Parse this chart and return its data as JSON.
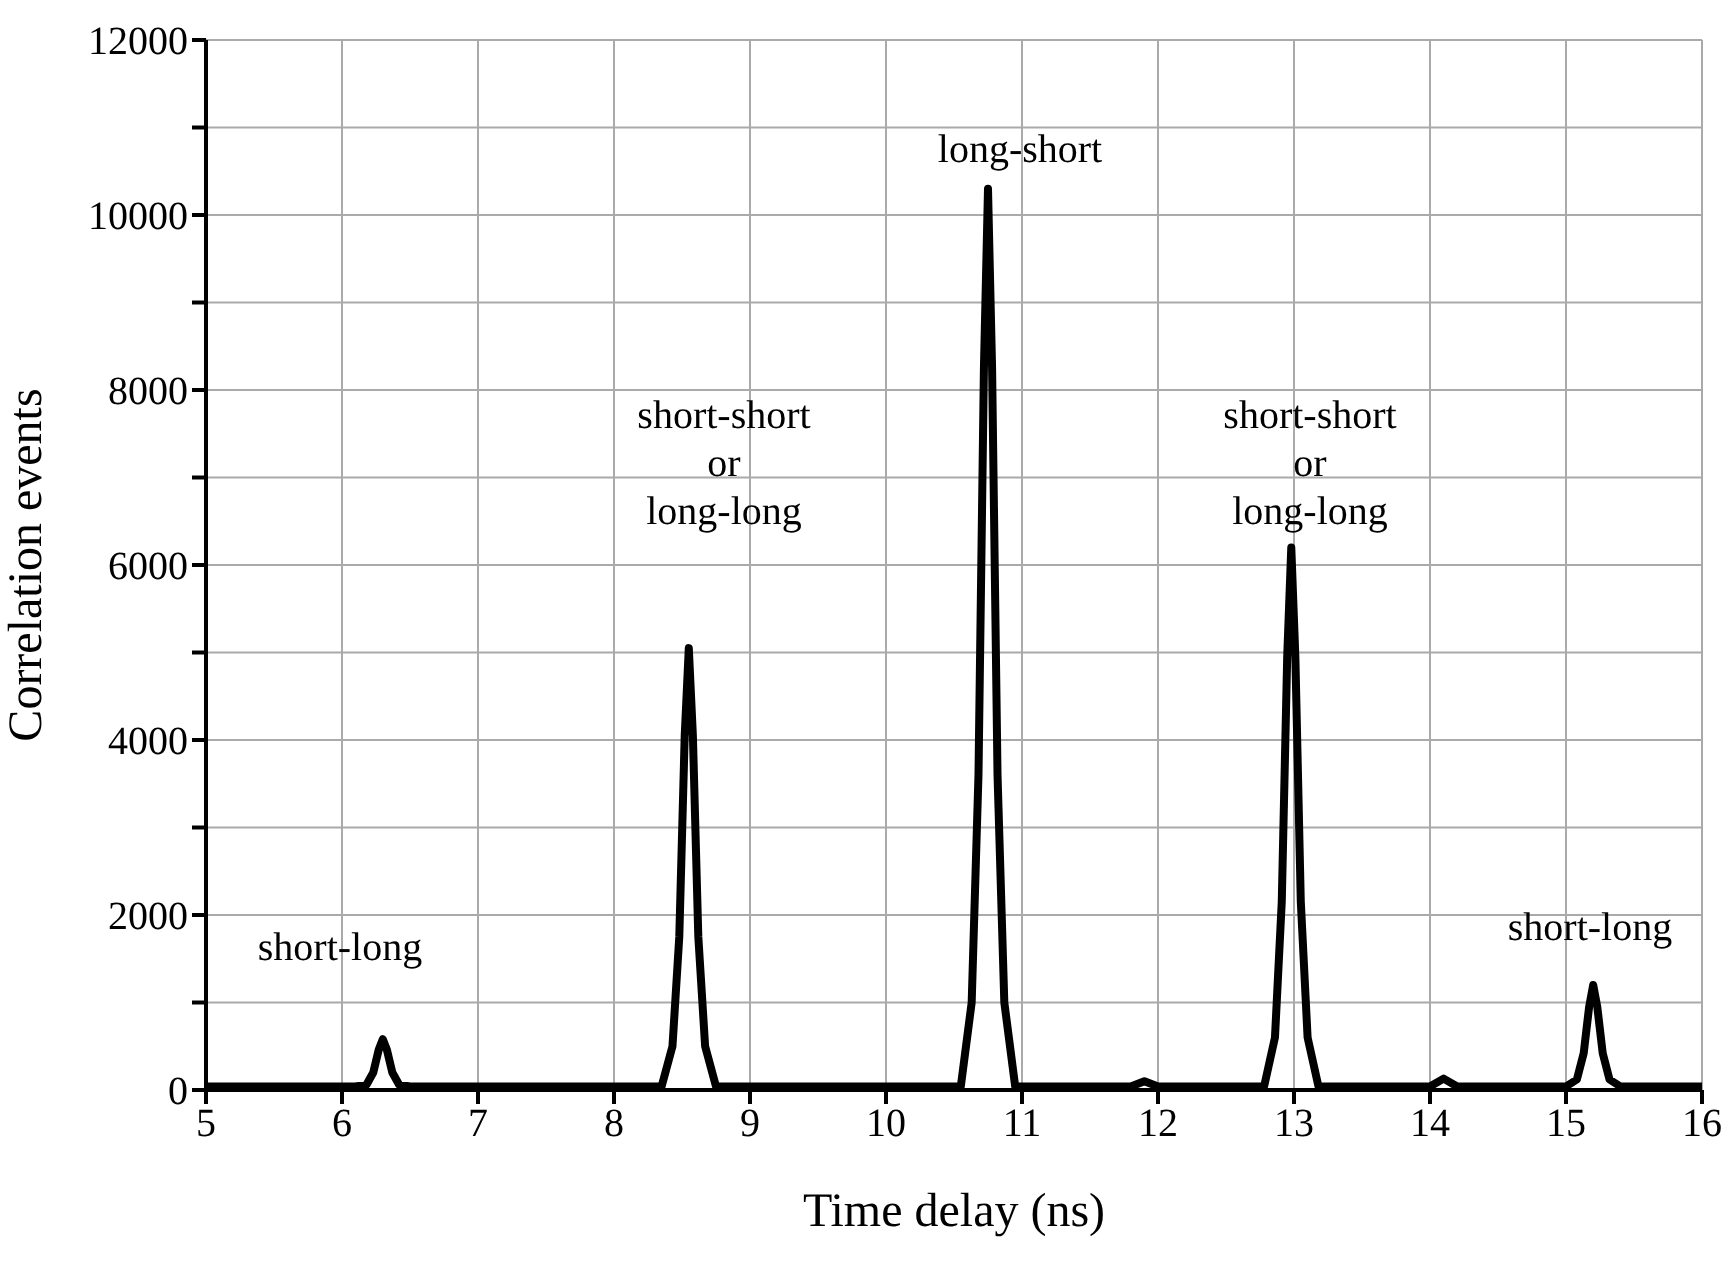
{
  "chart_data": {
    "type": "line",
    "xlabel": "Time delay (ns)",
    "ylabel": "Correlation events",
    "x": [
      5,
      6.1,
      6.18,
      6.23,
      6.27,
      6.3,
      6.33,
      6.37,
      6.42,
      6.5,
      8.35,
      8.43,
      8.48,
      8.52,
      8.55,
      8.58,
      8.62,
      8.67,
      8.75,
      10.55,
      10.63,
      10.68,
      10.72,
      10.75,
      10.78,
      10.82,
      10.87,
      10.95,
      11.8,
      11.9,
      12.0,
      12.78,
      12.86,
      12.91,
      12.95,
      12.98,
      13.01,
      13.05,
      13.1,
      13.18,
      14.0,
      14.1,
      14.2,
      15.0,
      15.08,
      15.13,
      15.17,
      15.2,
      15.23,
      15.27,
      15.32,
      15.4,
      16
    ],
    "series": [
      {
        "color": "#000000",
        "values": [
          40,
          40,
          60,
          200,
          460,
          580,
          460,
          200,
          60,
          40,
          40,
          500,
          1750,
          4050,
          5050,
          4050,
          1750,
          500,
          40,
          40,
          1000,
          3600,
          8250,
          10300,
          8250,
          3600,
          1000,
          40,
          40,
          100,
          40,
          40,
          600,
          2150,
          4950,
          6200,
          4950,
          2150,
          600,
          40,
          40,
          130,
          40,
          40,
          120,
          420,
          950,
          1200,
          950,
          420,
          120,
          40,
          40
        ]
      }
    ],
    "xlim": [
      5,
      16
    ],
    "xticks": [
      5,
      6,
      7,
      8,
      9,
      10,
      11,
      12,
      13,
      14,
      15,
      16
    ],
    "ylim": [
      0,
      12000
    ],
    "yticks": [
      0,
      {
        "value": 1000,
        "label": null
      },
      2000,
      {
        "value": 3000,
        "label": null
      },
      4000,
      {
        "value": 5000,
        "label": null
      },
      6000,
      {
        "value": 7000,
        "label": null
      },
      8000,
      {
        "value": 9000,
        "label": null
      },
      10000,
      {
        "value": 11000,
        "label": null
      },
      12000
    ],
    "grid": true,
    "line_style": "solid",
    "annotations": [
      "short-long",
      "short-short\nor\nlong-long",
      "long-short",
      "short-short\nor\nlong-long",
      "short-long"
    ]
  }
}
